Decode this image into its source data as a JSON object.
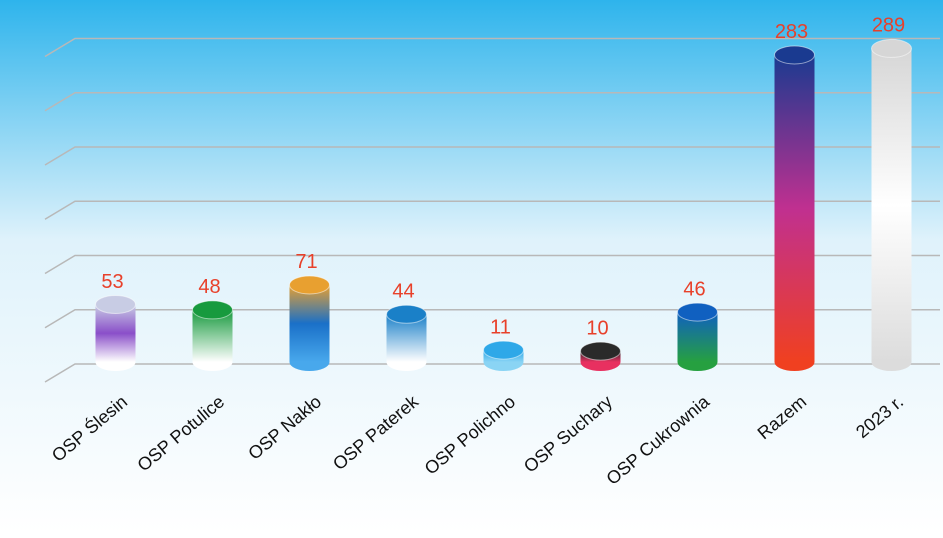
{
  "chart_data": {
    "type": "bar",
    "categories": [
      "OSP Ślesin",
      "OSP Potulice",
      "OSP Nakło",
      "OSP Paterek",
      "OSP Polichno",
      "OSP Suchary",
      "OSP Cukrownia",
      "Razem",
      "2023 r."
    ],
    "values": [
      53,
      48,
      71,
      44,
      11,
      10,
      46,
      283,
      289
    ],
    "colors": [
      [
        "#c8cce4",
        "#8a4fc9",
        "#ffffff"
      ],
      [
        "#179a3e",
        "#ffffff"
      ],
      [
        "#e8a030",
        "#1a70c8",
        "#48a8ec"
      ],
      [
        "#1a80c8",
        "#ffffff"
      ],
      [
        "#2ea8e8",
        "#8ad4f4"
      ],
      [
        "#2a2a2a",
        "#e83060"
      ],
      [
        "#1060c0",
        "#26a040"
      ],
      [
        "#1a3a90",
        "#c03090",
        "#f04020"
      ],
      [
        "#d6d6d6",
        "#ffffff",
        "#dcdcdc"
      ]
    ],
    "label_color": "#e8402a",
    "ylim": [
      0,
      300
    ],
    "yticks": [
      0,
      50,
      100,
      150,
      200,
      250,
      300
    ],
    "grid": true
  }
}
